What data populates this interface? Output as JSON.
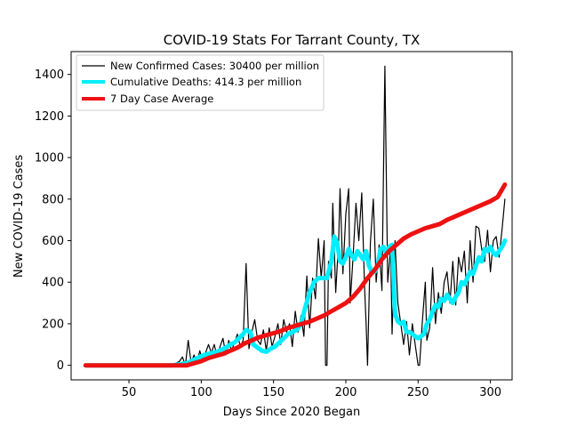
{
  "chart_data": {
    "type": "line",
    "title": "COVID-19 Stats For Tarrant County, TX",
    "xlabel": "Days Since 2020 Began",
    "ylabel": "New COVID-19 Cases",
    "xlim": [
      10,
      315
    ],
    "ylim": [
      -70,
      1510
    ],
    "xticks": [
      50,
      100,
      150,
      200,
      250,
      300
    ],
    "yticks": [
      0,
      200,
      400,
      600,
      800,
      1000,
      1200,
      1400
    ],
    "legend_position": "upper-left",
    "grid": false,
    "series": [
      {
        "name": "New Confirmed Cases: 30400 per million",
        "color": "#000000",
        "style": "thin",
        "points": [
          [
            20,
            0
          ],
          [
            75,
            0
          ],
          [
            80,
            0
          ],
          [
            85,
            20
          ],
          [
            87,
            40
          ],
          [
            89,
            0
          ],
          [
            91,
            120
          ],
          [
            93,
            10
          ],
          [
            95,
            50
          ],
          [
            97,
            10
          ],
          [
            99,
            70
          ],
          [
            101,
            20
          ],
          [
            103,
            60
          ],
          [
            105,
            100
          ],
          [
            107,
            60
          ],
          [
            109,
            100
          ],
          [
            111,
            40
          ],
          [
            113,
            90
          ],
          [
            115,
            130
          ],
          [
            117,
            50
          ],
          [
            119,
            120
          ],
          [
            121,
            70
          ],
          [
            123,
            110
          ],
          [
            125,
            150
          ],
          [
            127,
            90
          ],
          [
            129,
            120
          ],
          [
            131,
            490
          ],
          [
            133,
            80
          ],
          [
            135,
            160
          ],
          [
            137,
            220
          ],
          [
            139,
            120
          ],
          [
            141,
            100
          ],
          [
            143,
            170
          ],
          [
            145,
            70
          ],
          [
            147,
            180
          ],
          [
            149,
            90
          ],
          [
            151,
            140
          ],
          [
            153,
            200
          ],
          [
            155,
            100
          ],
          [
            157,
            220
          ],
          [
            159,
            160
          ],
          [
            161,
            200
          ],
          [
            163,
            90
          ],
          [
            165,
            260
          ],
          [
            167,
            160
          ],
          [
            169,
            240
          ],
          [
            171,
            140
          ],
          [
            173,
            430
          ],
          [
            175,
            180
          ],
          [
            177,
            420
          ],
          [
            179,
            320
          ],
          [
            181,
            610
          ],
          [
            183,
            420
          ],
          [
            185,
            600
          ],
          [
            186,
            0
          ],
          [
            187,
            0
          ],
          [
            188,
            500
          ],
          [
            190,
            420
          ],
          [
            191,
            780
          ],
          [
            193,
            350
          ],
          [
            195,
            600
          ],
          [
            196,
            850
          ],
          [
            198,
            440
          ],
          [
            200,
            730
          ],
          [
            202,
            850
          ],
          [
            203,
            300
          ],
          [
            205,
            520
          ],
          [
            207,
            780
          ],
          [
            209,
            600
          ],
          [
            211,
            830
          ],
          [
            213,
            370
          ],
          [
            214,
            200
          ],
          [
            215,
            0
          ],
          [
            217,
            590
          ],
          [
            219,
            800
          ],
          [
            221,
            400
          ],
          [
            223,
            580
          ],
          [
            225,
            360
          ],
          [
            227,
            1440
          ],
          [
            229,
            400
          ],
          [
            231,
            560
          ],
          [
            232,
            150
          ],
          [
            234,
            600
          ],
          [
            236,
            300
          ],
          [
            238,
            200
          ],
          [
            240,
            100
          ],
          [
            242,
            210
          ],
          [
            244,
            50
          ],
          [
            246,
            200
          ],
          [
            248,
            100
          ],
          [
            250,
            0
          ],
          [
            251,
            0
          ],
          [
            253,
            220
          ],
          [
            255,
            400
          ],
          [
            256,
            120
          ],
          [
            258,
            180
          ],
          [
            260,
            470
          ],
          [
            262,
            200
          ],
          [
            264,
            350
          ],
          [
            266,
            250
          ],
          [
            268,
            400
          ],
          [
            270,
            450
          ],
          [
            272,
            300
          ],
          [
            274,
            500
          ],
          [
            276,
            290
          ],
          [
            278,
            520
          ],
          [
            280,
            450
          ],
          [
            282,
            550
          ],
          [
            284,
            300
          ],
          [
            286,
            600
          ],
          [
            288,
            400
          ],
          [
            290,
            670
          ],
          [
            292,
            660
          ],
          [
            294,
            560
          ],
          [
            296,
            500
          ],
          [
            298,
            650
          ],
          [
            300,
            450
          ],
          [
            302,
            600
          ],
          [
            304,
            620
          ],
          [
            306,
            520
          ],
          [
            308,
            650
          ],
          [
            310,
            800
          ]
        ]
      },
      {
        "name": "Cumulative Deaths: 414.3 per million",
        "color": "#00eeff",
        "style": "thick",
        "points": [
          [
            20,
            0
          ],
          [
            80,
            0
          ],
          [
            85,
            5
          ],
          [
            90,
            10
          ],
          [
            93,
            20
          ],
          [
            96,
            30
          ],
          [
            99,
            40
          ],
          [
            102,
            50
          ],
          [
            105,
            55
          ],
          [
            108,
            60
          ],
          [
            111,
            65
          ],
          [
            114,
            75
          ],
          [
            117,
            85
          ],
          [
            120,
            100
          ],
          [
            123,
            110
          ],
          [
            126,
            130
          ],
          [
            129,
            150
          ],
          [
            131,
            170
          ],
          [
            134,
            160
          ],
          [
            136,
            100
          ],
          [
            138,
            90
          ],
          [
            140,
            80
          ],
          [
            142,
            70
          ],
          [
            145,
            65
          ],
          [
            148,
            80
          ],
          [
            151,
            90
          ],
          [
            154,
            110
          ],
          [
            157,
            130
          ],
          [
            160,
            150
          ],
          [
            163,
            160
          ],
          [
            166,
            170
          ],
          [
            169,
            200
          ],
          [
            172,
            280
          ],
          [
            175,
            350
          ],
          [
            178,
            400
          ],
          [
            181,
            420
          ],
          [
            184,
            420
          ],
          [
            187,
            420
          ],
          [
            190,
            500
          ],
          [
            192,
            620
          ],
          [
            194,
            590
          ],
          [
            196,
            500
          ],
          [
            198,
            490
          ],
          [
            200,
            520
          ],
          [
            202,
            560
          ],
          [
            204,
            530
          ],
          [
            206,
            510
          ],
          [
            208,
            550
          ],
          [
            210,
            530
          ],
          [
            212,
            510
          ],
          [
            214,
            550
          ],
          [
            216,
            480
          ],
          [
            218,
            450
          ],
          [
            220,
            450
          ],
          [
            222,
            480
          ],
          [
            224,
            560
          ],
          [
            226,
            570
          ],
          [
            228,
            540
          ],
          [
            230,
            570
          ],
          [
            232,
            580
          ],
          [
            234,
            250
          ],
          [
            236,
            210
          ],
          [
            238,
            200
          ],
          [
            240,
            210
          ],
          [
            242,
            160
          ],
          [
            244,
            160
          ],
          [
            246,
            150
          ],
          [
            248,
            140
          ],
          [
            250,
            130
          ],
          [
            252,
            140
          ],
          [
            254,
            150
          ],
          [
            256,
            200
          ],
          [
            258,
            220
          ],
          [
            260,
            260
          ],
          [
            262,
            290
          ],
          [
            264,
            280
          ],
          [
            266,
            320
          ],
          [
            268,
            310
          ],
          [
            270,
            340
          ],
          [
            272,
            320
          ],
          [
            274,
            300
          ],
          [
            276,
            330
          ],
          [
            278,
            350
          ],
          [
            280,
            400
          ],
          [
            282,
            390
          ],
          [
            284,
            420
          ],
          [
            286,
            450
          ],
          [
            288,
            440
          ],
          [
            290,
            480
          ],
          [
            292,
            520
          ],
          [
            294,
            500
          ],
          [
            296,
            560
          ],
          [
            298,
            550
          ],
          [
            300,
            570
          ],
          [
            302,
            540
          ],
          [
            304,
            530
          ],
          [
            306,
            550
          ],
          [
            308,
            570
          ],
          [
            310,
            600
          ]
        ]
      },
      {
        "name": "7 Day Case Average",
        "color": "#ee1111",
        "style": "thick",
        "points": [
          [
            20,
            0
          ],
          [
            90,
            0
          ],
          [
            95,
            10
          ],
          [
            100,
            20
          ],
          [
            105,
            35
          ],
          [
            110,
            45
          ],
          [
            115,
            55
          ],
          [
            120,
            70
          ],
          [
            125,
            85
          ],
          [
            130,
            105
          ],
          [
            135,
            120
          ],
          [
            140,
            135
          ],
          [
            145,
            145
          ],
          [
            150,
            155
          ],
          [
            155,
            165
          ],
          [
            160,
            180
          ],
          [
            165,
            190
          ],
          [
            170,
            200
          ],
          [
            175,
            210
          ],
          [
            180,
            225
          ],
          [
            185,
            240
          ],
          [
            190,
            260
          ],
          [
            195,
            280
          ],
          [
            200,
            300
          ],
          [
            205,
            330
          ],
          [
            210,
            370
          ],
          [
            215,
            420
          ],
          [
            220,
            460
          ],
          [
            225,
            510
          ],
          [
            230,
            550
          ],
          [
            235,
            580
          ],
          [
            240,
            610
          ],
          [
            245,
            630
          ],
          [
            250,
            645
          ],
          [
            255,
            660
          ],
          [
            260,
            670
          ],
          [
            265,
            680
          ],
          [
            270,
            700
          ],
          [
            275,
            715
          ],
          [
            280,
            730
          ],
          [
            285,
            745
          ],
          [
            290,
            760
          ],
          [
            295,
            775
          ],
          [
            300,
            790
          ],
          [
            305,
            810
          ],
          [
            310,
            870
          ]
        ]
      }
    ]
  }
}
